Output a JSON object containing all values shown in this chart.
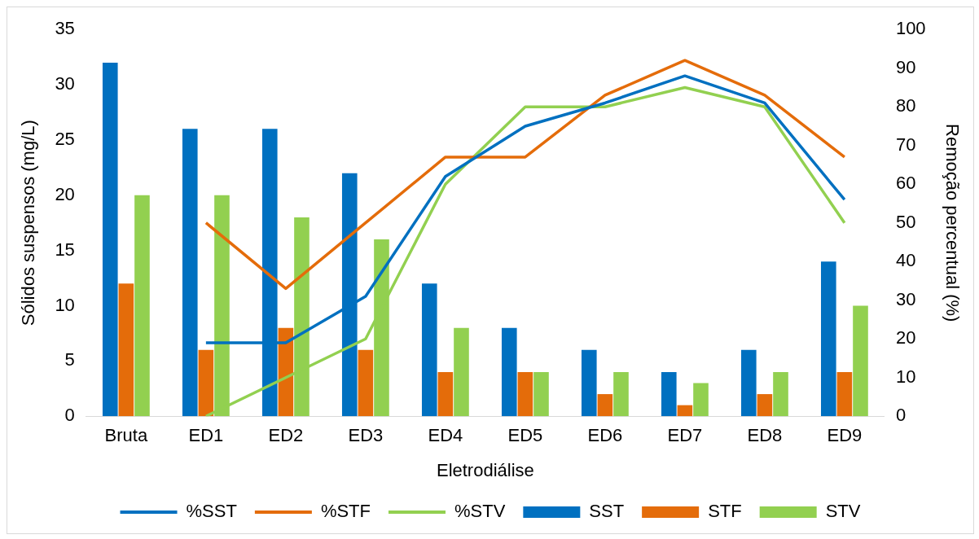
{
  "chart_data": {
    "type": "bar",
    "xlabel": "Eletrodiálise",
    "ylabel": "Sólidos suspensos (mg/L)",
    "y2label": "Remoção percentual (%)",
    "categories": [
      "Bruta",
      "ED1",
      "ED2",
      "ED3",
      "ED4",
      "ED5",
      "ED6",
      "ED7",
      "ED8",
      "ED9"
    ],
    "series": [
      {
        "name": "SST",
        "color": "#0070c0",
        "values": [
          32,
          26,
          26,
          22,
          12,
          8,
          6,
          4,
          6,
          14
        ]
      },
      {
        "name": "STF",
        "color": "#e46c0a",
        "values": [
          12,
          6,
          8,
          6,
          4,
          4,
          2,
          1,
          2,
          4
        ]
      },
      {
        "name": "STV",
        "color": "#92d050",
        "values": [
          20,
          20,
          18,
          16,
          8,
          4,
          4,
          3,
          4,
          10
        ]
      },
      {
        "name": "%SST",
        "type": "line",
        "axis": "y2",
        "color": "#0070c0",
        "values": [
          null,
          19,
          19,
          31,
          62,
          75,
          81,
          88,
          81,
          56
        ]
      },
      {
        "name": "%STF",
        "type": "line",
        "axis": "y2",
        "color": "#e46c0a",
        "values": [
          null,
          50,
          33,
          50,
          67,
          67,
          83,
          92,
          83,
          67
        ]
      },
      {
        "name": "%STV",
        "type": "line",
        "axis": "y2",
        "color": "#92d050",
        "values": [
          null,
          0,
          10,
          20,
          60,
          80,
          80,
          85,
          80,
          50
        ]
      }
    ],
    "ylim": [
      0,
      35
    ],
    "yticks": [
      0,
      5,
      10,
      15,
      20,
      25,
      30,
      35
    ],
    "y2lim": [
      0,
      100
    ],
    "y2ticks": [
      0,
      10,
      20,
      30,
      40,
      50,
      60,
      70,
      80,
      90,
      100
    ],
    "marker": "none",
    "legend": "bottom"
  }
}
